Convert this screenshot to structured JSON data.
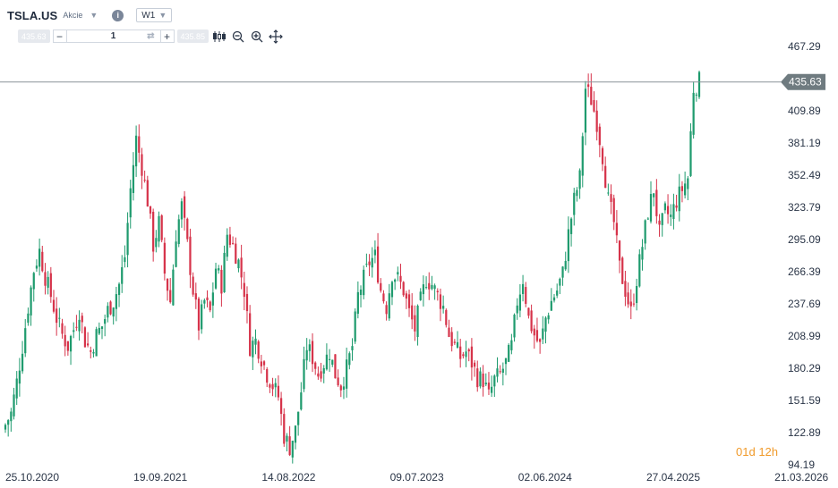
{
  "header": {
    "symbol": "TSLA.US",
    "asset_type": "Akcie",
    "info_icon": "info-icon",
    "timeframe": "W1"
  },
  "order_bar": {
    "sell_price": "435.63",
    "quantity": "1",
    "buy_price": "435.85",
    "minus_label": "−",
    "plus_label": "+",
    "icons": [
      "refresh-icon",
      "candlestick-type-icon",
      "zoom-out-icon",
      "zoom-in-icon",
      "crosshair-move-icon"
    ]
  },
  "countdown": {
    "days": "01",
    "days_unit": "d",
    "hours": "12",
    "hours_unit": "h"
  },
  "colors": {
    "up": "#1f9b6e",
    "down": "#d6334a",
    "price_line": "#8a9499",
    "price_label_bg": "#6f7b80"
  },
  "current_price_label": "435.63",
  "chart_data": {
    "type": "candlestick",
    "symbol": "TSLA.US",
    "timeframe": "W1",
    "y_ticks": [
      "467.29",
      "409.89",
      "381.19",
      "352.49",
      "323.79",
      "295.09",
      "266.39",
      "237.69",
      "208.99",
      "180.29",
      "151.59",
      "122.89",
      "94.19"
    ],
    "x_ticks": [
      "25.10.2020",
      "19.09.2021",
      "14.08.2022",
      "09.07.2023",
      "02.06.2024",
      "27.04.2025",
      "21.03.2026"
    ],
    "ylim": [
      94.19,
      496
    ],
    "current_price": 435.63,
    "grid": false,
    "approx_weekly_closes": [
      130,
      140,
      168,
      200,
      235,
      268,
      285,
      262,
      245,
      225,
      210,
      200,
      215,
      232,
      205,
      195,
      210,
      218,
      232,
      240,
      255,
      280,
      340,
      385,
      360,
      330,
      290,
      310,
      265,
      240,
      300,
      325,
      290,
      250,
      218,
      240,
      230,
      270,
      255,
      300,
      290,
      275,
      250,
      200,
      205,
      190,
      175,
      165,
      155,
      120,
      110,
      125,
      160,
      200,
      190,
      175,
      185,
      195,
      175,
      165,
      180,
      200,
      245,
      260,
      275,
      280,
      250,
      235,
      265,
      260,
      250,
      230,
      215,
      240,
      260,
      255,
      245,
      235,
      210,
      200,
      190,
      195,
      185,
      172,
      170,
      155,
      170,
      175,
      185,
      200,
      240,
      260,
      225,
      210,
      200,
      225,
      240,
      250,
      265,
      300,
      330,
      350,
      430,
      420,
      400,
      370,
      330,
      310,
      270,
      250,
      230,
      260,
      290,
      320,
      340,
      300,
      320,
      315,
      330,
      340,
      350,
      430,
      436
    ]
  }
}
